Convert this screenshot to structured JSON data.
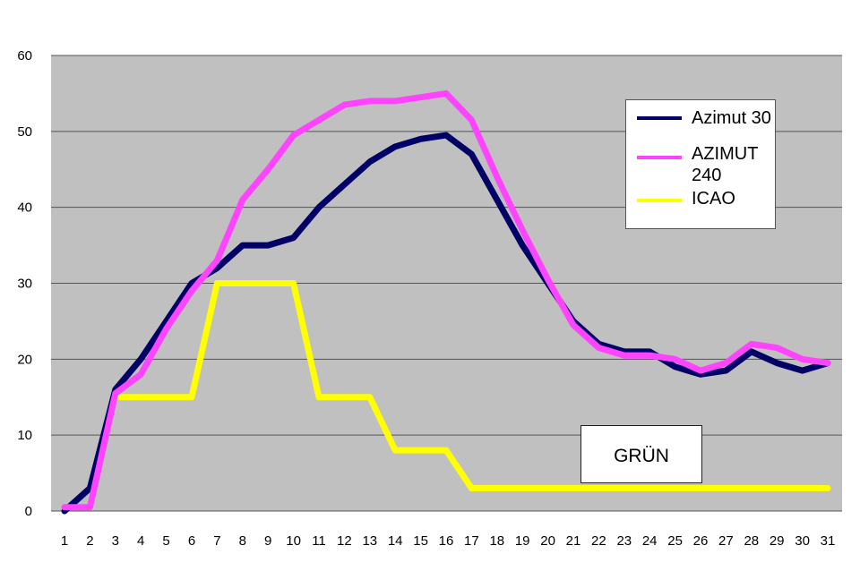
{
  "chart_data": {
    "type": "line",
    "x": [
      1,
      2,
      3,
      4,
      5,
      6,
      7,
      8,
      9,
      10,
      11,
      12,
      13,
      14,
      15,
      16,
      17,
      18,
      19,
      20,
      21,
      22,
      23,
      24,
      25,
      26,
      27,
      28,
      29,
      30,
      31
    ],
    "ylim": [
      0,
      60
    ],
    "yticks": [
      0,
      10,
      20,
      30,
      40,
      50,
      60
    ],
    "grid": true,
    "background": "#c0c0c0",
    "legend_position": "top-right",
    "series": [
      {
        "name": "Azimut 30",
        "color": "#000066",
        "values": [
          0,
          3,
          16,
          20,
          25,
          30,
          32,
          35,
          35,
          36,
          40,
          43,
          46,
          48,
          49,
          49.5,
          47,
          41,
          35,
          30,
          25,
          22,
          21,
          21,
          19,
          18,
          18.5,
          21,
          19.5,
          18.5,
          19.5
        ]
      },
      {
        "name": "AZIMUT 240",
        "color": "#ff44ff",
        "values": [
          0.5,
          0.5,
          15.5,
          18,
          24,
          29,
          33,
          41,
          45,
          49.5,
          51.5,
          53.5,
          54,
          54,
          54.5,
          55,
          51.5,
          44,
          37,
          30.5,
          24.5,
          21.5,
          20.5,
          20.5,
          20,
          18.5,
          19.5,
          22,
          21.5,
          20,
          19.5
        ]
      },
      {
        "name": "ICAO",
        "color": "#ffff00",
        "values": [
          null,
          null,
          15,
          15,
          15,
          15,
          30,
          30,
          30,
          30,
          15,
          15,
          15,
          8,
          8,
          8,
          3,
          3,
          3,
          3,
          3,
          3,
          3,
          3,
          3,
          3,
          3,
          3,
          3,
          3,
          3
        ]
      }
    ],
    "annotations": [
      "GRÜN"
    ]
  },
  "legend": {
    "items": [
      {
        "label": "Azimut 30",
        "color": "#000066"
      },
      {
        "label": "AZIMUT 240",
        "color": "#ff44ff"
      },
      {
        "label": "ICAO",
        "color": "#ffff00"
      }
    ]
  },
  "note": {
    "text": "GRÜN"
  }
}
